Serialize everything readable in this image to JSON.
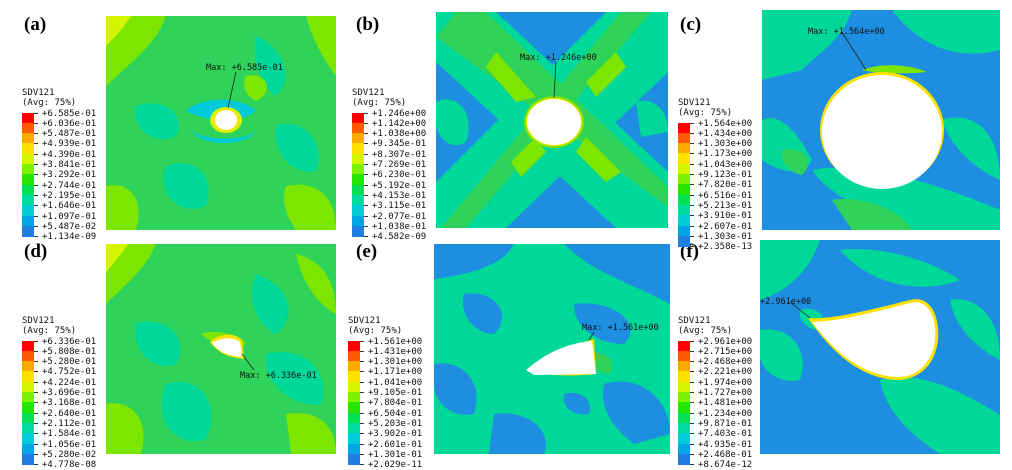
{
  "palette": [
    "#ff0000",
    "#ff5a00",
    "#ffaa00",
    "#ffe200",
    "#d4f400",
    "#7df200",
    "#26e600",
    "#00e052",
    "#00dca0",
    "#00cbd6",
    "#00a5e6",
    "#1e7fe0"
  ],
  "panels": [
    {
      "id": "a",
      "label": "(a)",
      "legend_title": "SDV121",
      "legend_subtitle": "(Avg: 75%)",
      "values": [
        "+6.585e-01",
        "+6.036e-01",
        "+5.487e-01",
        "+4.939e-01",
        "+4.390e-01",
        "+3.841e-01",
        "+3.292e-01",
        "+2.744e-01",
        "+2.195e-01",
        "+1.646e-01",
        "+1.097e-01",
        "+5.487e-02",
        "+1.134e-09"
      ],
      "max_label": "Max: +6.585e-01"
    },
    {
      "id": "b",
      "label": "(b)",
      "legend_title": "SDV121",
      "legend_subtitle": "(Avg: 75%)",
      "values": [
        "+1.246e+00",
        "+1.142e+00",
        "+1.038e+00",
        "+9.345e-01",
        "+8.307e-01",
        "+7.269e-01",
        "+6.230e-01",
        "+5.192e-01",
        "+4.153e-01",
        "+3.115e-01",
        "+2.077e-01",
        "+1.038e-01",
        "+4.582e-09"
      ],
      "max_label": "Max: +1.246e+00"
    },
    {
      "id": "c",
      "label": "(c)",
      "legend_title": "SDV121",
      "legend_subtitle": "(Avg: 75%)",
      "values": [
        "+1.564e+00",
        "+1.434e+00",
        "+1.303e+00",
        "+1.173e+00",
        "+1.043e+00",
        "+9.123e-01",
        "+7.820e-01",
        "+6.516e-01",
        "+5.213e-01",
        "+3.910e-01",
        "+2.607e-01",
        "+1.303e-01",
        "+2.358e-13"
      ],
      "max_label": "Max: +1.564e+00"
    },
    {
      "id": "d",
      "label": "(d)",
      "legend_title": "SDV121",
      "legend_subtitle": "(Avg: 75%)",
      "values": [
        "+6.336e-01",
        "+5.808e-01",
        "+5.280e-01",
        "+4.752e-01",
        "+4.224e-01",
        "+3.696e-01",
        "+3.168e-01",
        "+2.640e-01",
        "+2.112e-01",
        "+1.584e-01",
        "+1.056e-01",
        "+5.280e-02",
        "+4.778e-08"
      ],
      "max_label": "Max: +6.336e-01"
    },
    {
      "id": "e",
      "label": "(e)",
      "legend_title": "SDV121",
      "legend_subtitle": "(Avg: 75%)",
      "values": [
        "+1.561e+00",
        "+1.431e+00",
        "+1.301e+00",
        "+1.171e+00",
        "+1.041e+00",
        "+9.105e-01",
        "+7.804e-01",
        "+6.504e-01",
        "+5.203e-01",
        "+3.902e-01",
        "+2.601e-01",
        "+1.301e-01",
        "+2.029e-11"
      ],
      "max_label": "Max: +1.561e+00"
    },
    {
      "id": "f",
      "label": "(f)",
      "legend_title": "SDV121",
      "legend_subtitle": "(Avg: 75%)",
      "values": [
        "+2.961e+00",
        "+2.715e+00",
        "+2.468e+00",
        "+2.221e+00",
        "+1.974e+00",
        "+1.727e+00",
        "+1.481e+00",
        "+1.234e+00",
        "+9.871e-01",
        "+7.403e-01",
        "+4.935e-01",
        "+2.468e-01",
        "+8.674e-12"
      ],
      "max_label": "+2.961e+00"
    }
  ]
}
